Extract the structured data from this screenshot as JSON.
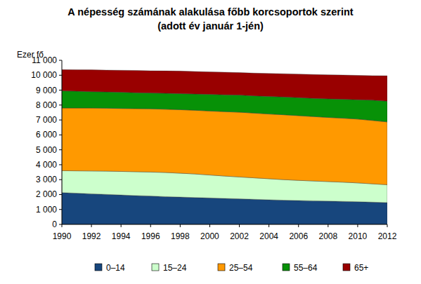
{
  "chart_data": {
    "type": "area",
    "stacked": true,
    "grid": false,
    "legend": "bottom",
    "title": "A népesség számának alakulása főbb korcsoportok szerint",
    "subtitle": "(adott év január 1-jén)",
    "y_label": "Ezer fő",
    "x": [
      1990,
      1991,
      1992,
      1993,
      1994,
      1995,
      1996,
      1997,
      1998,
      1999,
      2000,
      2001,
      2002,
      2003,
      2004,
      2005,
      2006,
      2007,
      2008,
      2009,
      2010,
      2011,
      2012
    ],
    "xlim": [
      1990,
      2012
    ],
    "xticks": [
      1990,
      1992,
      1994,
      1996,
      1998,
      2000,
      2002,
      2004,
      2006,
      2008,
      2010,
      2012
    ],
    "ylim": [
      0,
      11000
    ],
    "yticks": [
      0,
      {
        "value": 1000,
        "label": "1 000"
      },
      {
        "value": 2000,
        "label": "2 000"
      },
      {
        "value": 3000,
        "label": "3 000"
      },
      {
        "value": 4000,
        "label": "4 000"
      },
      {
        "value": 5000,
        "label": "5 000"
      },
      {
        "value": 6000,
        "label": "6 000"
      },
      {
        "value": 7000,
        "label": "7 000"
      },
      {
        "value": 8000,
        "label": "8 000"
      },
      {
        "value": 9000,
        "label": "9 000"
      },
      {
        "value": 10000,
        "label": "10 000"
      },
      {
        "value": 11000,
        "label": "11 000"
      }
    ],
    "series": [
      {
        "name": "0–14",
        "color": "#17467d",
        "values": [
          2130,
          2090,
          2050,
          2010,
          1970,
          1930,
          1900,
          1860,
          1830,
          1800,
          1770,
          1740,
          1710,
          1680,
          1650,
          1620,
          1600,
          1580,
          1560,
          1540,
          1520,
          1490,
          1460
        ]
      },
      {
        "name": "15–24",
        "color": "#ccffcc",
        "values": [
          1470,
          1500,
          1530,
          1560,
          1580,
          1600,
          1610,
          1620,
          1600,
          1580,
          1540,
          1500,
          1470,
          1440,
          1410,
          1380,
          1350,
          1330,
          1310,
          1290,
          1260,
          1230,
          1200
        ]
      },
      {
        "name": "25–54",
        "color": "#ff9900",
        "values": [
          4200,
          4210,
          4220,
          4220,
          4220,
          4230,
          4240,
          4240,
          4260,
          4270,
          4290,
          4320,
          4340,
          4340,
          4340,
          4350,
          4340,
          4320,
          4300,
          4290,
          4280,
          4250,
          4210
        ]
      },
      {
        "name": "55–64",
        "color": "#079107",
        "values": [
          1150,
          1130,
          1100,
          1090,
          1090,
          1070,
          1060,
          1070,
          1080,
          1090,
          1120,
          1130,
          1150,
          1160,
          1180,
          1190,
          1210,
          1220,
          1250,
          1270,
          1300,
          1360,
          1390
        ]
      },
      {
        "name": "65+",
        "color": "#990000",
        "values": [
          1425,
          1440,
          1460,
          1460,
          1470,
          1490,
          1490,
          1500,
          1510,
          1510,
          1500,
          1510,
          1505,
          1520,
          1535,
          1560,
          1575,
          1600,
          1610,
          1620,
          1630,
          1640,
          1700
        ]
      }
    ]
  }
}
